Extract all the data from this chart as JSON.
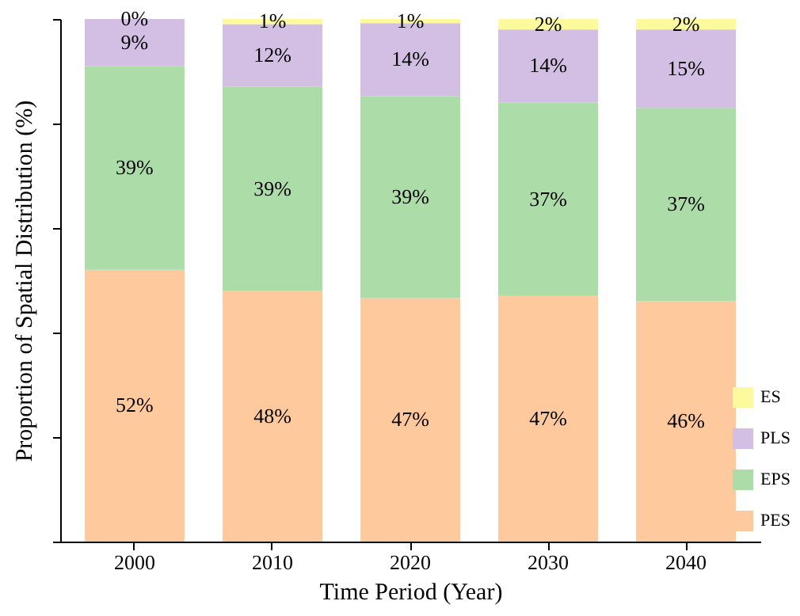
{
  "chart_data": {
    "type": "bar",
    "stacked": true,
    "xlabel": "Time Period (Year)",
    "ylabel": "Proportion of Spatial Distribution (%)",
    "categories": [
      "2000",
      "2010",
      "2020",
      "2030",
      "2040"
    ],
    "ylim": [
      0,
      100
    ],
    "yticks": [
      {
        "value": 0,
        "label": null
      },
      {
        "value": 20,
        "label": null
      },
      {
        "value": 40,
        "label": null
      },
      {
        "value": 60,
        "label": null
      },
      {
        "value": 80,
        "label": null
      },
      {
        "value": 100,
        "label": null
      }
    ],
    "tick_labels": "x",
    "grid": false,
    "legend": "bottom right",
    "series": [
      {
        "name": "PES",
        "color": "#fdc99d",
        "values": [
          52,
          48,
          46.6,
          47,
          46
        ],
        "value_labels": [
          "52%",
          "48%",
          "47%",
          "47%",
          "46%"
        ]
      },
      {
        "name": "EPS",
        "color": "#acdca8",
        "values": [
          39,
          39,
          38.6,
          37,
          37
        ],
        "value_labels": [
          "39%",
          "39%",
          "39%",
          "37%",
          "37%"
        ]
      },
      {
        "name": "PLS",
        "color": "#d3bfe3",
        "values": [
          9,
          12,
          14,
          14,
          15
        ],
        "value_labels": [
          "9%",
          "12%",
          "14%",
          "14%",
          "15%"
        ]
      },
      {
        "name": "ES",
        "color": "#fdfa9e",
        "values": [
          0,
          1,
          0.8,
          2,
          2
        ],
        "value_labels": [
          "0%",
          "1%",
          "1%",
          "2%",
          "2%"
        ]
      }
    ]
  }
}
